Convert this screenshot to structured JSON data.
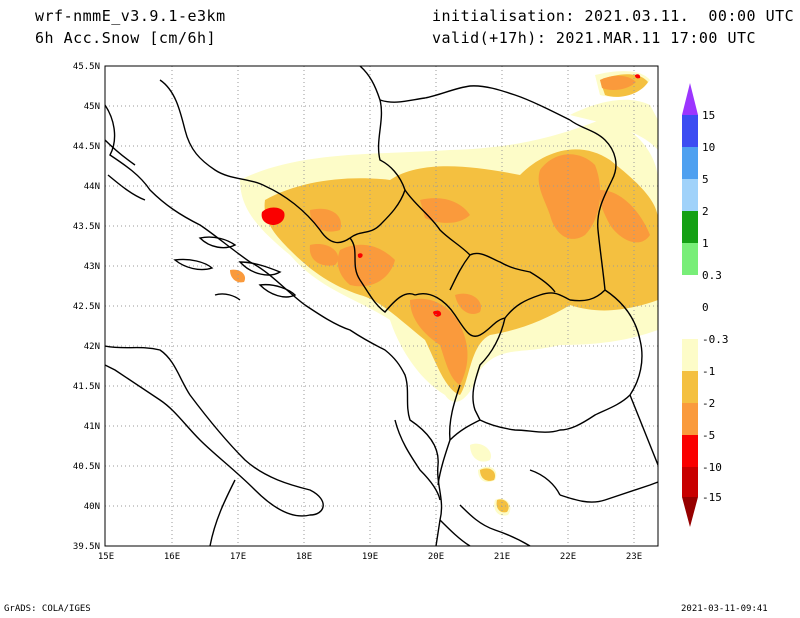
{
  "header": {
    "model": "wrf-nmmE_v3.9.1-e3km",
    "field": "6h Acc.Snow [cm/6h]",
    "init": "initialisation: 2021.03.11.  00:00 UTC",
    "valid": "valid(+17h): 2021.MAR.11 17:00 UTC"
  },
  "map": {
    "lat_labels": [
      "45.5N",
      "45N",
      "44.5N",
      "44N",
      "43.5N",
      "43N",
      "42.5N",
      "42N",
      "41.5N",
      "41N",
      "40.5N",
      "40N",
      "39.5N"
    ],
    "lon_labels": [
      "15E",
      "16E",
      "17E",
      "18E",
      "19E",
      "20E",
      "21E",
      "22E",
      "23E"
    ],
    "lat_range": [
      39.5,
      45.5
    ],
    "lon_range": [
      15,
      23.25
    ],
    "grid": "dotted"
  },
  "legend": {
    "labels": [
      "15",
      "10",
      "5",
      "2",
      "1",
      "0.3",
      "0",
      "-0.3",
      "-1",
      "-2",
      "-5",
      "-10",
      "-15"
    ],
    "colors": [
      "#9c35ff",
      "#3c4cf2",
      "#4ea0f0",
      "#a0d2fa",
      "#14a014",
      "#78ee78",
      "#ffffff",
      "#fdfcc8",
      "#f4c040",
      "#fa9a3c",
      "#fa0000",
      "#c80000",
      "#960000"
    ]
  },
  "footer": {
    "left": "GrADS: COLA/IGES",
    "right": "2021-03-11-09:41"
  }
}
